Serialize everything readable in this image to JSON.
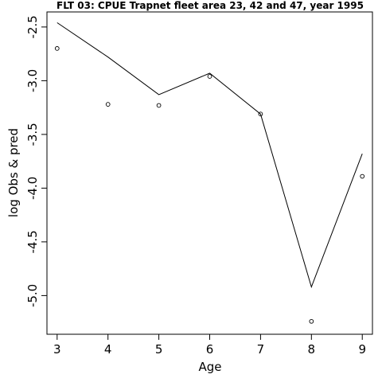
{
  "chart_data": {
    "type": "line",
    "title": "FLT 03: CPUE Trapnet fleet area 23, 42 and 47, year 1995",
    "xlabel": "Age",
    "ylabel": "log Obs & pred",
    "x_ticks": [
      "3",
      "4",
      "5",
      "6",
      "7",
      "8",
      "9"
    ],
    "y_ticks": [
      "-2.5",
      "-3.0",
      "-3.5",
      "-4.0",
      "-4.5",
      "-5.0"
    ],
    "xlim": [
      2.8,
      9.2
    ],
    "ylim": [
      -5.36,
      -2.36
    ],
    "grid": false,
    "legend": "none",
    "series": [
      {
        "style": "line",
        "x": [
          3,
          4,
          5,
          6,
          7,
          8,
          9
        ],
        "y": [
          -2.46,
          -2.78,
          -3.13,
          -2.93,
          -3.31,
          -4.92,
          -3.68
        ]
      },
      {
        "style": "points",
        "marker": "open-circle",
        "x": [
          3,
          4,
          5,
          6,
          7,
          8,
          9
        ],
        "y": [
          -2.7,
          -3.22,
          -3.23,
          -2.96,
          -3.31,
          -5.24,
          -3.89
        ]
      }
    ]
  }
}
